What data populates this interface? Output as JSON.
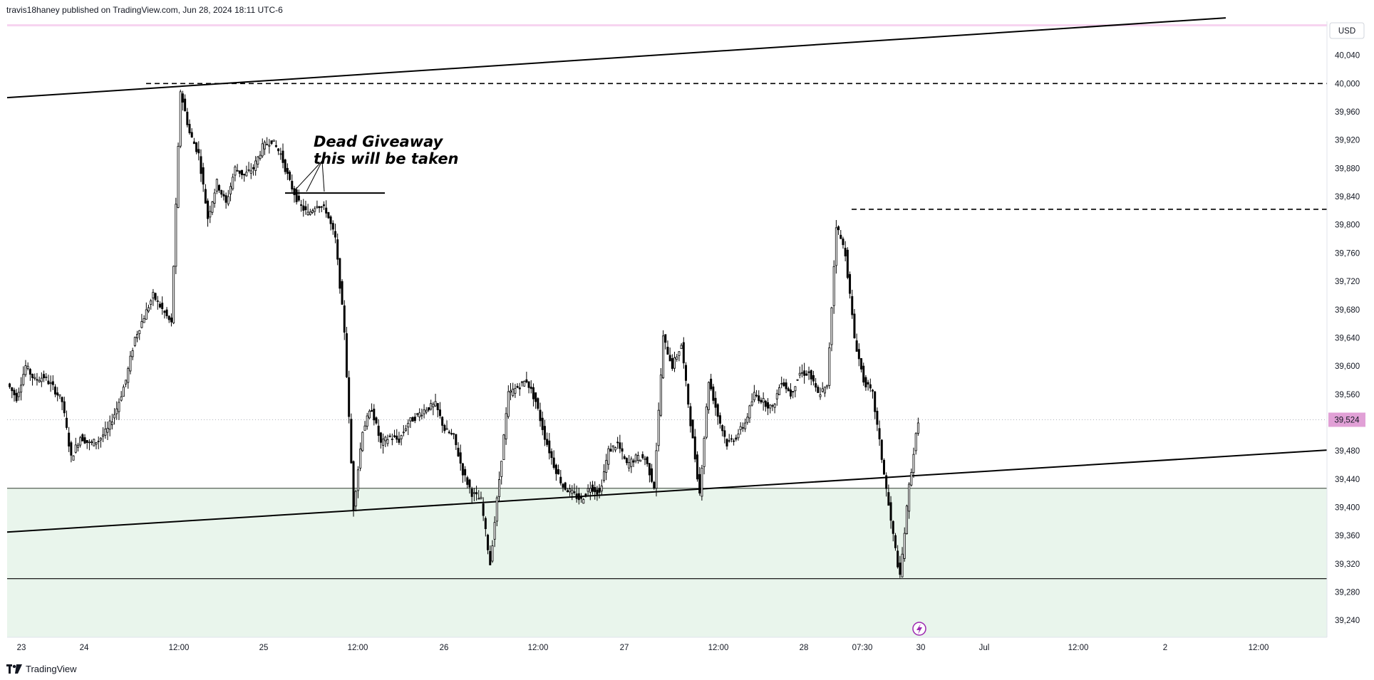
{
  "header": {
    "published_line": "travis18haney published on TradingView.com, Jun 28, 2024 18:11 UTC-6"
  },
  "footer": {
    "brand": "TradingView"
  },
  "colors": {
    "accent": "#f7d4f0",
    "zone_fill": "#e9f5ec",
    "price_label_bg": "#e1a0d6",
    "candle": "#000000",
    "bolt": "#9c27b0"
  },
  "chart_data": {
    "type": "candlestick",
    "currency": "USD",
    "y_tick_values": [
      40040,
      40000,
      39960,
      39920,
      39880,
      39840,
      39800,
      39760,
      39720,
      39680,
      39640,
      39600,
      39560,
      39480,
      39440,
      39400,
      39360,
      39320,
      39280,
      39240
    ],
    "y_tick_labels": [
      "40,040",
      "40,000",
      "39,960",
      "39,920",
      "39,880",
      "39,840",
      "39,800",
      "39,760",
      "39,720",
      "39,680",
      "39,640",
      "39,600",
      "39,560",
      "39,480",
      "39,440",
      "39,400",
      "39,360",
      "39,320",
      "39,280",
      "39,240"
    ],
    "y_range": [
      39216,
      40082
    ],
    "x_labels": [
      "23",
      "24",
      "12:00",
      "25",
      "12:00",
      "26",
      "12:00",
      "27",
      "12:00",
      "28",
      "07:30",
      "30",
      "Jul",
      "12:00",
      "2",
      "12:00"
    ],
    "last_price": 39524,
    "last_price_label": "39,524",
    "resistance_level": 40000,
    "recent_high_level": 39822,
    "demand_zone": {
      "top": 39427,
      "bottom": 39299
    },
    "upper_trendline": {
      "start_value": 39980,
      "end_value": 40093
    },
    "lower_trendline": {
      "start_value": 39365,
      "end_value": 39481
    },
    "annotation": {
      "line1": "Dead Giveaway",
      "line2": "this will be taken",
      "level": 39845
    },
    "price_path": [
      [
        0,
        39575
      ],
      [
        1,
        39555
      ],
      [
        2,
        39600
      ],
      [
        3,
        39580
      ],
      [
        4,
        39585
      ],
      [
        5,
        39570
      ],
      [
        6,
        39550
      ],
      [
        7,
        39470
      ],
      [
        8,
        39500
      ],
      [
        9,
        39490
      ],
      [
        10,
        39495
      ],
      [
        11,
        39510
      ],
      [
        12,
        39540
      ],
      [
        13,
        39580
      ],
      [
        14,
        39640
      ],
      [
        15,
        39670
      ],
      [
        16,
        39700
      ],
      [
        17,
        39680
      ],
      [
        18,
        39660
      ],
      [
        19,
        39990
      ],
      [
        20,
        39930
      ],
      [
        21,
        39900
      ],
      [
        22,
        39810
      ],
      [
        23,
        39860
      ],
      [
        24,
        39830
      ],
      [
        25,
        39880
      ],
      [
        26,
        39870
      ],
      [
        27,
        39880
      ],
      [
        28,
        39910
      ],
      [
        29,
        39920
      ],
      [
        30,
        39900
      ],
      [
        31,
        39860
      ],
      [
        32,
        39830
      ],
      [
        33,
        39815
      ],
      [
        34,
        39830
      ],
      [
        35,
        39820
      ],
      [
        36,
        39780
      ],
      [
        37,
        39650
      ],
      [
        38,
        39400
      ],
      [
        39,
        39510
      ],
      [
        40,
        39540
      ],
      [
        41,
        39490
      ],
      [
        42,
        39500
      ],
      [
        43,
        39495
      ],
      [
        44,
        39520
      ],
      [
        45,
        39530
      ],
      [
        46,
        39540
      ],
      [
        47,
        39545
      ],
      [
        48,
        39510
      ],
      [
        49,
        39500
      ],
      [
        50,
        39450
      ],
      [
        51,
        39420
      ],
      [
        52,
        39410
      ],
      [
        53,
        39320
      ],
      [
        54,
        39440
      ],
      [
        55,
        39560
      ],
      [
        56,
        39570
      ],
      [
        57,
        39580
      ],
      [
        58,
        39550
      ],
      [
        59,
        39500
      ],
      [
        60,
        39460
      ],
      [
        61,
        39430
      ],
      [
        62,
        39420
      ],
      [
        63,
        39410
      ],
      [
        64,
        39430
      ],
      [
        65,
        39420
      ],
      [
        66,
        39480
      ],
      [
        67,
        39490
      ],
      [
        68,
        39460
      ],
      [
        69,
        39470
      ],
      [
        70,
        39470
      ],
      [
        71,
        39430
      ],
      [
        72,
        39640
      ],
      [
        73,
        39600
      ],
      [
        74,
        39630
      ],
      [
        75,
        39520
      ],
      [
        76,
        39420
      ],
      [
        77,
        39580
      ],
      [
        78,
        39530
      ],
      [
        79,
        39490
      ],
      [
        80,
        39500
      ],
      [
        81,
        39520
      ],
      [
        82,
        39560
      ],
      [
        83,
        39550
      ],
      [
        84,
        39540
      ],
      [
        85,
        39580
      ],
      [
        86,
        39560
      ],
      [
        87,
        39590
      ],
      [
        88,
        39590
      ],
      [
        89,
        39560
      ],
      [
        90,
        39570
      ],
      [
        91,
        39800
      ],
      [
        92,
        39760
      ],
      [
        93,
        39640
      ],
      [
        94,
        39580
      ],
      [
        95,
        39560
      ],
      [
        96,
        39470
      ],
      [
        97,
        39380
      ],
      [
        98,
        39300
      ],
      [
        99,
        39430
      ],
      [
        100,
        39524
      ]
    ]
  }
}
